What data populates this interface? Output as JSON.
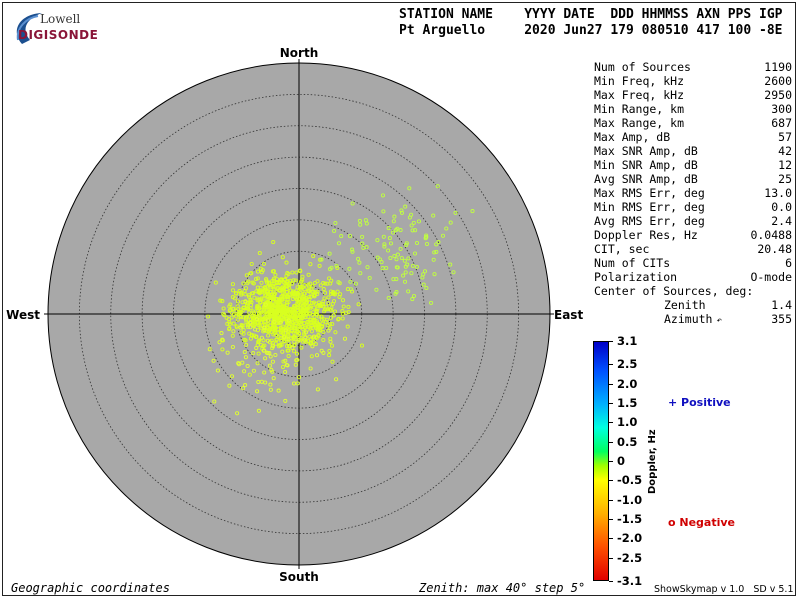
{
  "logo": {
    "word1": "Lowell",
    "word2": "DIGISONDE"
  },
  "header": {
    "row1": "STATION NAME    YYYY DATE  DDD HHMMSS AXN PPS IGP",
    "row2": "Pt Arguello     2020 Jun27 179 080510 417 100 -8E"
  },
  "stats": [
    {
      "label": "Num of Sources",
      "value": "1190"
    },
    {
      "label": "Min Freq, kHz",
      "value": "2600"
    },
    {
      "label": "Max Freq, kHz",
      "value": "2950"
    },
    {
      "label": "Min Range, km",
      "value": "300"
    },
    {
      "label": "Max Range, km",
      "value": "687"
    },
    {
      "label": "Max Amp, dB",
      "value": "57"
    },
    {
      "label": "Max SNR Amp, dB",
      "value": "42"
    },
    {
      "label": "Min SNR Amp, dB",
      "value": "12"
    },
    {
      "label": "Avg SNR Amp, dB",
      "value": "25"
    },
    {
      "label": "Max RMS Err, deg",
      "value": "13.0"
    },
    {
      "label": "Min RMS Err, deg",
      "value": "0.0"
    },
    {
      "label": "Avg RMS Err, deg",
      "value": "2.4"
    },
    {
      "label": "Doppler Res, Hz",
      "value": "0.0488"
    },
    {
      "label": "CIT, sec",
      "value": "20.48"
    },
    {
      "label": "Num of CITs",
      "value": "6"
    },
    {
      "label": "Polarization",
      "value": "O-mode"
    }
  ],
  "center": {
    "title": "Center of Sources, deg:",
    "zenith_label": "Zenith",
    "zenith_value": "1.4",
    "azimuth_label": "Azimuth",
    "azimuth_value": "355"
  },
  "directions": {
    "north": "North",
    "south": "South",
    "east": "East",
    "west": "West"
  },
  "footer": {
    "left": "Geographic coordinates",
    "mid": "Zenith: max 40°  step 5°",
    "right": "ShowSkymap v 1.0   SD v 5.1"
  },
  "colorbar": {
    "label": "Doppler, Hz",
    "ticks": [
      "3.1",
      "2.5",
      "2.0",
      "1.5",
      "1.0",
      "0.5",
      "0",
      "-0.5",
      "-1.0",
      "-1.5",
      "-2.0",
      "-2.5",
      "-3.1"
    ],
    "tick_values": [
      3.1,
      2.5,
      2.0,
      1.5,
      1.0,
      0.5,
      0,
      -0.5,
      -1.0,
      -1.5,
      -2.0,
      -2.5,
      -3.1
    ],
    "positive_label": "+ Positive",
    "negative_label": "o Negative",
    "positive_color": "#1010c0",
    "negative_color": "#d00000"
  },
  "chart_data": {
    "type": "scatter",
    "coordinate_system": "polar skymap, geographic",
    "zenith_max_deg": 40,
    "zenith_step_deg": 5,
    "background_color": "#a8a8a8",
    "grid": true,
    "point_color_scale": "Doppler, Hz",
    "points_shown": 1190,
    "clusters": [
      {
        "zenith_center_deg": 2.5,
        "azimuth_center_deg": 280,
        "spread_deg": 4.0,
        "share": 0.82,
        "color": "#d8ff20"
      },
      {
        "zenith_center_deg": 18.5,
        "azimuth_center_deg": 55,
        "spread_deg": 5.0,
        "share": 0.1,
        "color": "#c0ff40"
      },
      {
        "zenith_center_deg": 9.0,
        "azimuth_center_deg": 220,
        "spread_deg": 5.0,
        "share": 0.08,
        "color": "#e0ff30"
      }
    ]
  }
}
